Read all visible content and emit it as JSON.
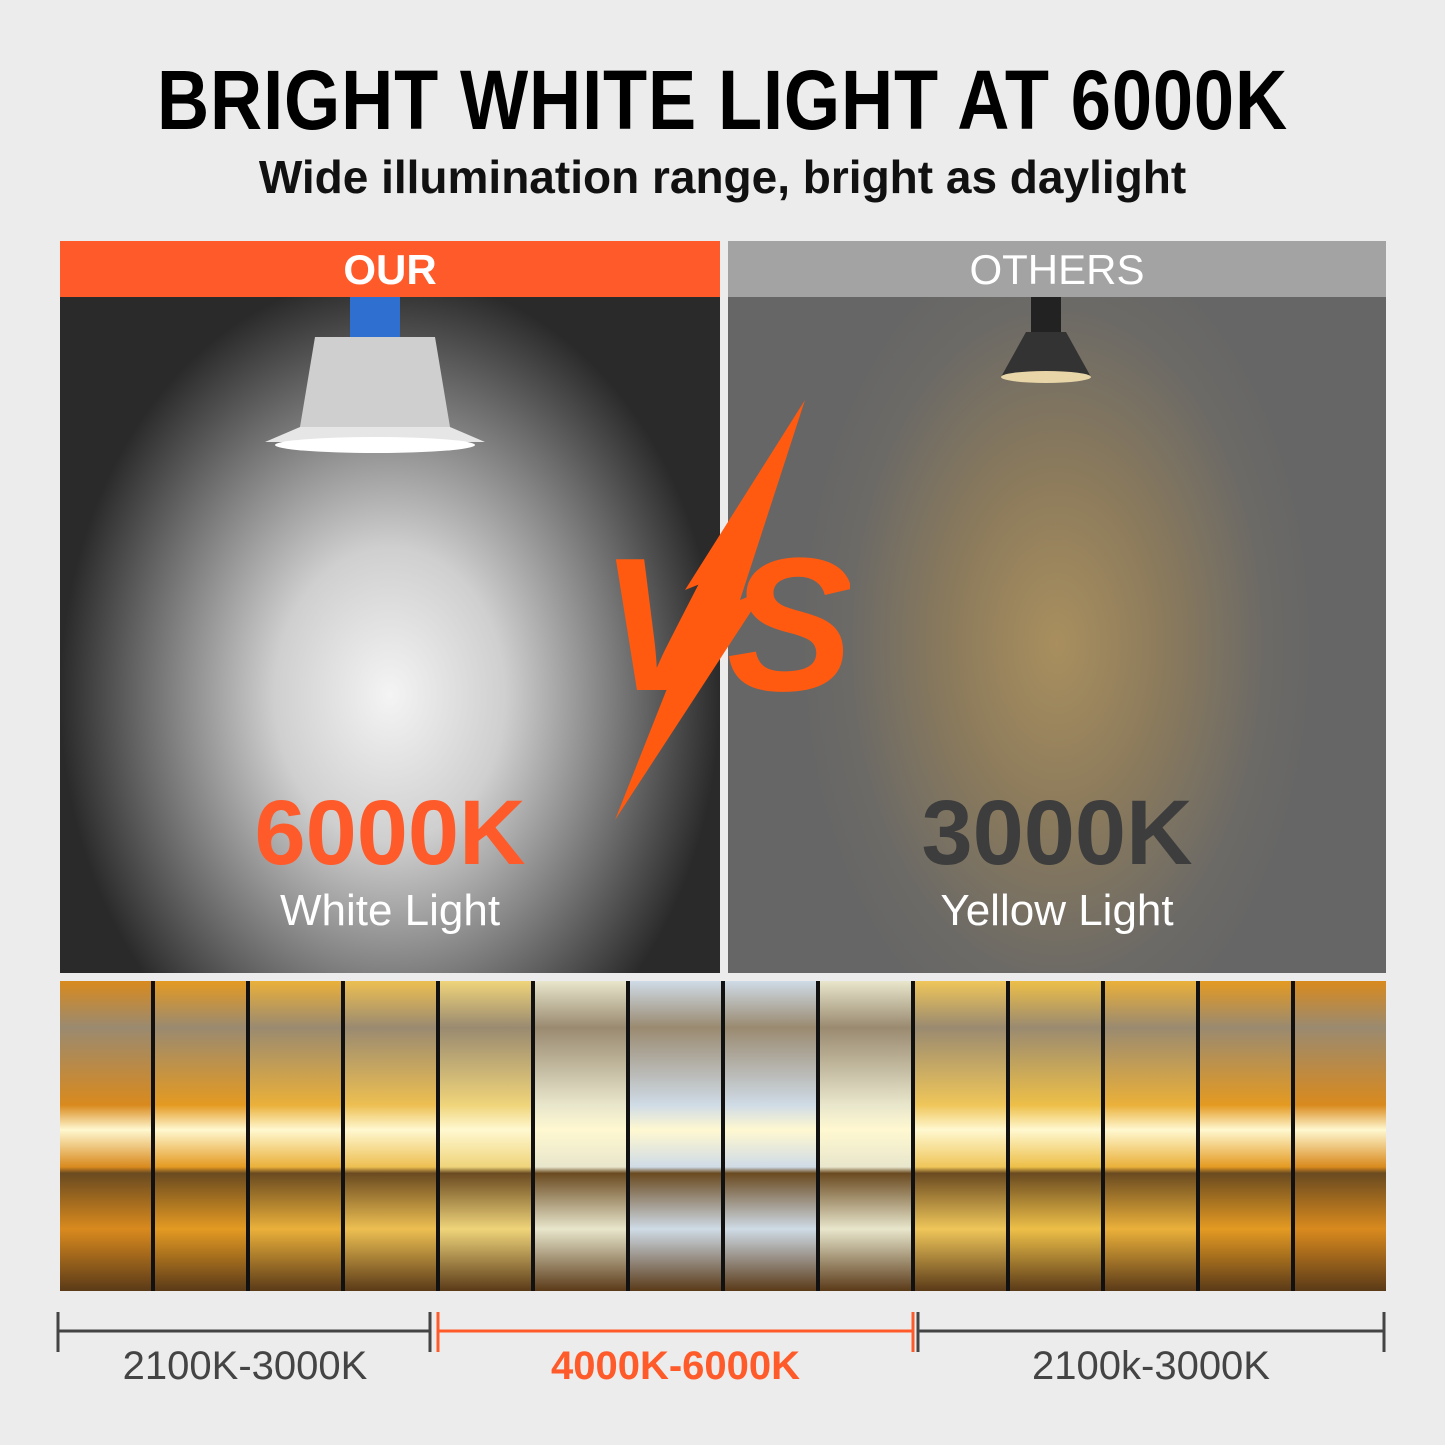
{
  "header": {
    "title": "BRIGHT WHITE LIGHT AT 6000K",
    "subtitle": "Wide illumination range, bright as daylight"
  },
  "our": {
    "label": "OUR",
    "temperature": "6000K",
    "light": "White Light"
  },
  "others": {
    "label": "OTHERS",
    "temperature": "3000K",
    "light": "Yellow Light"
  },
  "vs": "VS",
  "scale": {
    "left": "2100K-3000K",
    "center": "4000K-6000K",
    "right": "2100k-3000K"
  },
  "colors": {
    "accent": "#ff5a2a",
    "gray": "#a3a3a3"
  }
}
